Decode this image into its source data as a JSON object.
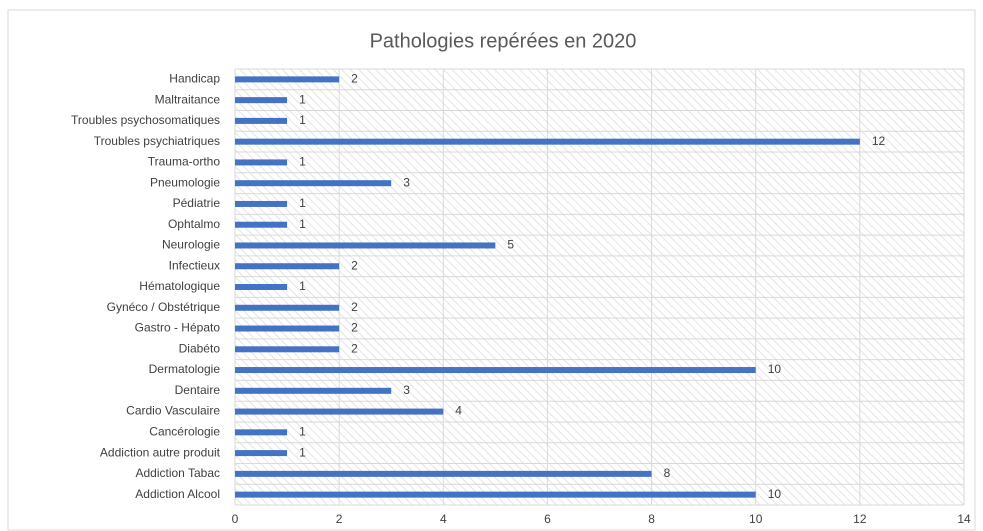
{
  "chart_data": {
    "type": "bar",
    "orientation": "horizontal",
    "title": "Pathologies repérées en 2020",
    "categories": [
      "Handicap",
      "Maltraitance",
      "Troubles psychosomatiques",
      "Troubles psychiatriques",
      "Trauma-ortho",
      "Pneumologie",
      "Pédiatrie",
      "Ophtalmo",
      "Neurologie",
      "Infectieux",
      "Hématologique",
      "Gynéco / Obstétrique",
      "Gastro - Hépato",
      "Diabéto",
      "Dermatologie",
      "Dentaire",
      "Cardio Vasculaire",
      "Cancérologie",
      "Addiction autre produit",
      "Addiction Tabac",
      "Addiction Alcool"
    ],
    "values": [
      2,
      1,
      1,
      12,
      1,
      3,
      1,
      1,
      5,
      2,
      1,
      2,
      2,
      2,
      10,
      3,
      4,
      1,
      1,
      8,
      10
    ],
    "color": "#4472c4",
    "xlim": [
      0,
      14
    ],
    "xticks": [
      0,
      2,
      4,
      6,
      8,
      10,
      12,
      14
    ],
    "grid": true
  }
}
